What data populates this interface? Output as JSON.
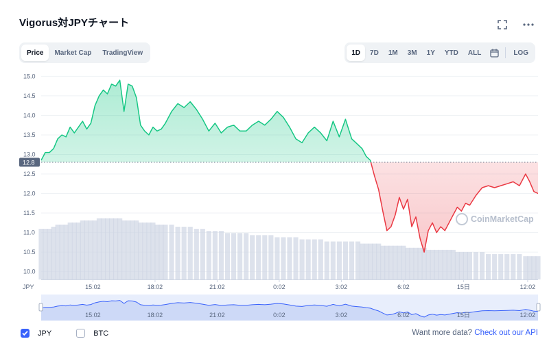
{
  "title": "Vigorus対JPYチャート",
  "tabs_left": [
    {
      "label": "Price",
      "active": true
    },
    {
      "label": "Market Cap",
      "active": false
    },
    {
      "label": "TradingView",
      "active": false
    }
  ],
  "tabs_right": [
    {
      "label": "1D",
      "active": true
    },
    {
      "label": "7D",
      "active": false
    },
    {
      "label": "1M",
      "active": false
    },
    {
      "label": "3M",
      "active": false
    },
    {
      "label": "1Y",
      "active": false
    },
    {
      "label": "YTD",
      "active": false
    },
    {
      "label": "ALL",
      "active": false
    }
  ],
  "log_label": "LOG",
  "currency_label": "JPY",
  "reference_price_label": "12.8",
  "watermark": "CoinMarketCap",
  "legend": [
    {
      "label": "JPY",
      "checked": true
    },
    {
      "label": "BTC",
      "checked": false
    }
  ],
  "api_text": "Want more data?",
  "api_link": "Check out our API",
  "colors": {
    "up": "#16c784",
    "down": "#ea3943",
    "accent": "#3861fb",
    "volume": "#cfd6e4"
  },
  "icons": [
    "fullscreen-icon",
    "more-icon",
    "calendar-icon"
  ],
  "chart_data": {
    "type": "line",
    "title": "Vigorus対JPYチャート",
    "xlabel": "",
    "ylabel": "JPY",
    "ylim": [
      9.8,
      15.2
    ],
    "reference": 12.8,
    "y_ticks": [
      "15.0",
      "14.5",
      "14.0",
      "13.5",
      "13.0",
      "12.5",
      "12.0",
      "11.5",
      "11.0",
      "10.5",
      "10.0"
    ],
    "x_ticks": [
      "15:02",
      "18:02",
      "21:02",
      "0:02",
      "3:02",
      "6:02",
      "15日",
      "12:02"
    ],
    "x_tick_hours": [
      2.5,
      5.5,
      8.5,
      11.5,
      14.5,
      17.5,
      20.4,
      23.5
    ],
    "x_range_hours": [
      0,
      24
    ],
    "series": [
      {
        "x": [
          0,
          0.2,
          0.4,
          0.6,
          0.8,
          1.0,
          1.2,
          1.4,
          1.6,
          1.8,
          2.0,
          2.2,
          2.4,
          2.6,
          2.8,
          3.0,
          3.2,
          3.4,
          3.6,
          3.8,
          4.0,
          4.2,
          4.4,
          4.6,
          4.8,
          5.0,
          5.2,
          5.4,
          5.6,
          5.8,
          6.0,
          6.3,
          6.6,
          6.9,
          7.2,
          7.5,
          7.8,
          8.1,
          8.4,
          8.7,
          9.0,
          9.3,
          9.6,
          9.9,
          10.2,
          10.5,
          10.8,
          11.1,
          11.4,
          11.7,
          12.0,
          12.3,
          12.6,
          12.9,
          13.2,
          13.5,
          13.8,
          14.1,
          14.4,
          14.7,
          15.0,
          15.3,
          15.5,
          15.7,
          15.9,
          16.1,
          16.3,
          16.5,
          16.7,
          16.9,
          17.1,
          17.3,
          17.5,
          17.7,
          17.9,
          18.1,
          18.3,
          18.5,
          18.7,
          18.9,
          19.1,
          19.3,
          19.5,
          19.7,
          19.9,
          20.1,
          20.3,
          20.5,
          20.7,
          21.0,
          21.3,
          21.6,
          21.9,
          22.2,
          22.5,
          22.8,
          23.1,
          23.4,
          23.6,
          23.8,
          24.0
        ],
        "values": [
          12.85,
          13.05,
          13.05,
          13.15,
          13.4,
          13.5,
          13.45,
          13.7,
          13.55,
          13.7,
          13.85,
          13.65,
          13.8,
          14.25,
          14.5,
          14.65,
          14.55,
          14.8,
          14.75,
          14.9,
          14.1,
          14.8,
          14.75,
          14.45,
          13.75,
          13.6,
          13.5,
          13.7,
          13.6,
          13.65,
          13.8,
          14.1,
          14.3,
          14.2,
          14.35,
          14.15,
          13.9,
          13.6,
          13.8,
          13.55,
          13.7,
          13.75,
          13.6,
          13.6,
          13.75,
          13.85,
          13.75,
          13.9,
          14.1,
          13.95,
          13.7,
          13.4,
          13.3,
          13.55,
          13.7,
          13.55,
          13.35,
          13.85,
          13.45,
          13.9,
          13.4,
          13.25,
          13.15,
          12.95,
          12.85,
          12.45,
          12.1,
          11.55,
          11.05,
          11.15,
          11.45,
          11.9,
          11.6,
          11.85,
          11.15,
          11.4,
          10.85,
          10.5,
          11.05,
          11.25,
          11.0,
          11.15,
          11.05,
          11.25,
          11.45,
          11.65,
          11.55,
          11.75,
          11.7,
          11.95,
          12.15,
          12.2,
          12.15,
          12.2,
          12.25,
          12.3,
          12.2,
          12.5,
          12.3,
          12.05,
          12.0
        ],
        "volume": [
          12,
          12,
          12,
          12.5,
          13,
          13,
          13,
          13.5,
          13.5,
          13.5,
          14,
          14,
          14,
          14,
          14.5,
          14.5,
          14.5,
          14.5,
          14.5,
          14.5,
          14,
          14,
          14,
          14,
          13.5,
          13.5,
          13.5,
          13.5,
          13,
          13,
          13,
          13,
          12.5,
          12.5,
          12.5,
          12,
          12,
          11.5,
          11.5,
          11.5,
          11,
          11,
          11,
          11,
          10.5,
          10.5,
          10.5,
          10.5,
          10,
          10,
          10,
          10,
          9.5,
          9.5,
          9.5,
          9.5,
          9,
          9,
          9,
          9,
          9,
          9,
          8.5,
          8.5,
          8.5,
          8.5,
          8.5,
          8,
          8,
          8,
          8,
          8,
          8,
          7.5,
          7.5,
          7.5,
          7.5,
          7.5,
          7,
          7,
          7,
          7,
          7,
          7,
          7,
          6.5,
          6.5,
          6.5,
          6.5,
          6.5,
          6.5,
          6,
          6,
          6,
          6,
          6,
          6,
          5.5,
          5.5,
          5.5,
          5.5
        ]
      }
    ]
  }
}
